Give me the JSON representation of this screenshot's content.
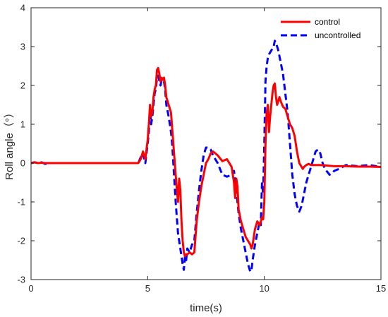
{
  "chart_data": {
    "type": "line",
    "title": "",
    "xlabel": "time(s)",
    "ylabel": "Roll angle（°）",
    "xlim": [
      0,
      15
    ],
    "ylim": [
      -3,
      4
    ],
    "xticks": [
      0,
      5,
      10,
      15
    ],
    "yticks": [
      -3,
      -2,
      -1,
      0,
      1,
      2,
      3,
      4
    ],
    "grid": false,
    "legend_position": "top-right",
    "series": [
      {
        "name": "control",
        "color": "#ff0000",
        "style": "solid",
        "x": [
          0,
          0.15,
          0.3,
          0.45,
          0.6,
          0.8,
          1.0,
          1.5,
          2.0,
          3.0,
          4.0,
          4.6,
          4.7,
          4.8,
          4.85,
          4.9,
          5.0,
          5.05,
          5.1,
          5.15,
          5.2,
          5.25,
          5.3,
          5.35,
          5.4,
          5.45,
          5.5,
          5.55,
          5.6,
          5.65,
          5.7,
          5.75,
          5.8,
          5.9,
          6.0,
          6.05,
          6.1,
          6.2,
          6.3,
          6.35,
          6.4,
          6.45,
          6.5,
          6.55,
          6.6,
          6.65,
          6.7,
          6.8,
          6.9,
          7.0,
          7.1,
          7.2,
          7.3,
          7.4,
          7.5,
          7.6,
          7.7,
          7.8,
          7.9,
          8.0,
          8.2,
          8.4,
          8.6,
          8.7,
          8.75,
          8.8,
          8.85,
          8.9,
          9.0,
          9.1,
          9.2,
          9.3,
          9.4,
          9.45,
          9.5,
          9.55,
          9.6,
          9.7,
          9.8,
          9.85,
          9.9,
          9.95,
          10.0,
          10.05,
          10.1,
          10.15,
          10.2,
          10.25,
          10.3,
          10.35,
          10.4,
          10.45,
          10.5,
          10.55,
          10.6,
          10.65,
          10.7,
          10.8,
          10.9,
          11.0,
          11.1,
          11.2,
          11.3,
          11.4,
          11.5,
          11.6,
          11.65,
          11.7,
          11.8,
          11.9,
          12.0,
          12.2,
          12.4,
          12.6,
          12.8,
          13.0,
          13.5,
          14.0,
          14.5,
          15.0
        ],
        "y": [
          0.0,
          0.02,
          0.0,
          0.01,
          0.0,
          0.0,
          0.0,
          0.0,
          0.0,
          0.0,
          0.0,
          0.0,
          0.1,
          0.3,
          0.2,
          0.1,
          0.6,
          1.0,
          1.5,
          1.2,
          1.3,
          1.7,
          1.9,
          2.0,
          2.4,
          2.45,
          2.3,
          2.1,
          2.2,
          2.15,
          2.2,
          2.0,
          1.7,
          1.5,
          1.3,
          0.9,
          0.5,
          -0.3,
          -1.0,
          -0.4,
          -0.7,
          -1.5,
          -2.0,
          -2.3,
          -2.4,
          -2.35,
          -2.35,
          -2.3,
          -2.35,
          -2.3,
          -1.5,
          -1.0,
          -0.6,
          -0.3,
          0.0,
          0.1,
          0.25,
          0.3,
          0.25,
          0.2,
          0.05,
          0.1,
          -0.1,
          -0.5,
          -0.9,
          -0.4,
          -0.6,
          -1.2,
          -1.5,
          -1.7,
          -1.9,
          -2.0,
          -2.1,
          -2.2,
          -2.1,
          -1.9,
          -1.7,
          -1.5,
          -1.6,
          -1.5,
          -1.4,
          -1.45,
          -1.0,
          0.5,
          1.3,
          1.5,
          0.8,
          1.2,
          1.5,
          1.8,
          2.0,
          2.05,
          1.7,
          1.5,
          1.6,
          1.7,
          1.6,
          1.45,
          1.4,
          1.2,
          1.0,
          0.9,
          0.7,
          0.3,
          0.0,
          -0.1,
          -0.15,
          -0.1,
          -0.05,
          -0.02,
          -0.05,
          -0.05,
          -0.05,
          -0.06,
          -0.07,
          -0.08,
          -0.08,
          -0.09,
          -0.09,
          -0.1
        ]
      },
      {
        "name": "uncontrolled",
        "color": "#0000ff",
        "style": "dashed",
        "x": [
          0,
          0.15,
          0.3,
          0.45,
          0.6,
          0.8,
          1.0,
          1.5,
          2.0,
          3.0,
          4.0,
          4.6,
          4.7,
          4.8,
          4.85,
          4.9,
          5.0,
          5.05,
          5.1,
          5.15,
          5.2,
          5.25,
          5.3,
          5.35,
          5.4,
          5.45,
          5.5,
          5.55,
          5.6,
          5.65,
          5.7,
          5.75,
          5.8,
          5.9,
          6.0,
          6.05,
          6.1,
          6.2,
          6.3,
          6.35,
          6.4,
          6.45,
          6.5,
          6.55,
          6.6,
          6.65,
          6.7,
          6.8,
          6.9,
          7.0,
          7.1,
          7.2,
          7.3,
          7.4,
          7.5,
          7.6,
          7.7,
          7.8,
          8.0,
          8.2,
          8.4,
          8.6,
          8.7,
          8.8,
          8.9,
          9.0,
          9.1,
          9.2,
          9.3,
          9.4,
          9.45,
          9.5,
          9.55,
          9.6,
          9.7,
          9.8,
          9.85,
          9.9,
          9.95,
          10.0,
          10.05,
          10.1,
          10.15,
          10.2,
          10.3,
          10.4,
          10.45,
          10.5,
          10.6,
          10.7,
          10.8,
          10.9,
          11.0,
          11.1,
          11.2,
          11.3,
          11.4,
          11.5,
          11.6,
          11.7,
          11.8,
          11.9,
          12.0,
          12.1,
          12.2,
          12.3,
          12.4,
          12.5,
          12.6,
          12.8,
          13.0,
          13.2,
          13.5,
          14.0,
          14.5,
          15.0
        ],
        "y": [
          0.0,
          0.02,
          0.0,
          0.02,
          -0.02,
          0.0,
          0.0,
          0.0,
          0.0,
          0.0,
          0.0,
          0.0,
          0.15,
          0.25,
          0.1,
          0.0,
          0.5,
          0.8,
          1.4,
          1.0,
          1.2,
          1.5,
          1.8,
          1.9,
          2.2,
          2.25,
          2.1,
          2.0,
          2.15,
          2.1,
          2.1,
          1.9,
          1.5,
          1.2,
          0.8,
          0.5,
          0.0,
          -1.0,
          -1.8,
          -2.0,
          -2.2,
          -2.4,
          -2.6,
          -2.75,
          -2.4,
          -2.5,
          -2.2,
          -2.3,
          -2.1,
          -2.0,
          -1.3,
          -0.7,
          -0.2,
          0.2,
          0.4,
          0.4,
          0.35,
          0.2,
          0.0,
          -0.3,
          -0.35,
          -0.3,
          -0.2,
          -0.7,
          -1.3,
          -1.7,
          -2.0,
          -2.3,
          -2.6,
          -2.8,
          -2.75,
          -2.5,
          -2.3,
          -2.1,
          -1.8,
          -1.5,
          -1.6,
          -0.5,
          -0.8,
          0.5,
          2.1,
          2.5,
          2.7,
          2.8,
          2.9,
          3.0,
          3.15,
          3.1,
          2.9,
          2.6,
          2.3,
          1.8,
          1.3,
          0.5,
          -0.3,
          -0.8,
          -1.1,
          -1.25,
          -1.1,
          -0.8,
          -0.5,
          -0.3,
          -0.1,
          0.1,
          0.3,
          0.35,
          0.25,
          0.0,
          -0.15,
          -0.3,
          -0.2,
          -0.15,
          -0.05,
          -0.08,
          -0.05,
          -0.1
        ]
      }
    ]
  }
}
